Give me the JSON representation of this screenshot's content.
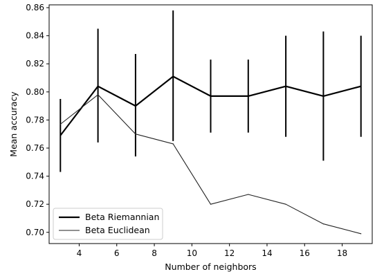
{
  "chart_data": {
    "type": "line",
    "xlabel": "Number of neighbors",
    "ylabel": "Mean accuracy",
    "xlim": [
      2.4,
      19.6
    ],
    "ylim": [
      0.692,
      0.862
    ],
    "xticks": [
      4,
      6,
      8,
      10,
      12,
      14,
      16,
      18
    ],
    "yticks": [
      0.7,
      0.72,
      0.74,
      0.76,
      0.78,
      0.8,
      0.82,
      0.84,
      0.86
    ],
    "xtick_labels": [
      "4",
      "6",
      "8",
      "10",
      "12",
      "14",
      "16",
      "18"
    ],
    "ytick_labels": [
      "0.70",
      "0.72",
      "0.74",
      "0.76",
      "0.78",
      "0.80",
      "0.82",
      "0.84",
      "0.86"
    ],
    "grid": false,
    "legend_position": "lower-left",
    "series": [
      {
        "name": "Beta Riemannian",
        "style": "thick",
        "x": [
          3,
          5,
          7,
          9,
          11,
          13,
          15,
          17,
          19
        ],
        "y": [
          0.769,
          0.804,
          0.79,
          0.811,
          0.797,
          0.797,
          0.804,
          0.797,
          0.804
        ],
        "error_low": [
          0.743,
          0.764,
          0.754,
          0.765,
          0.771,
          0.771,
          0.768,
          0.751,
          0.768
        ],
        "error_high": [
          0.795,
          0.845,
          0.827,
          0.858,
          0.823,
          0.823,
          0.84,
          0.843,
          0.84
        ],
        "color": "#000000"
      },
      {
        "name": "Beta Euclidean",
        "style": "thin",
        "x": [
          3,
          5,
          7,
          9,
          11,
          13,
          15,
          17,
          19
        ],
        "y": [
          0.777,
          0.798,
          0.77,
          0.763,
          0.72,
          0.727,
          0.72,
          0.706,
          0.699
        ],
        "color": "#222222"
      }
    ]
  }
}
